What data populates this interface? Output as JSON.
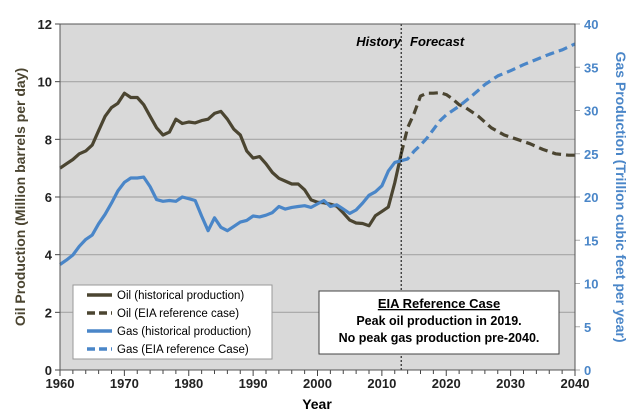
{
  "chart_data": {
    "type": "line",
    "xlabel": "Year",
    "ylabel": "Oil Production (Million barrels per day)",
    "y2label": "Gas Production (Trillion cubic feet per year)",
    "xlim": [
      1960,
      2040
    ],
    "ylim": [
      0,
      12
    ],
    "y2lim": [
      0,
      40
    ],
    "grid": true,
    "x_ticks": [
      "1960",
      "1970",
      "1980",
      "1990",
      "2000",
      "2010",
      "2020",
      "2030",
      "2040"
    ],
    "y_ticks": [
      "0",
      "2",
      "4",
      "6",
      "8",
      "10",
      "12"
    ],
    "y2_ticks": [
      "0",
      "5",
      "10",
      "15",
      "20",
      "25",
      "30",
      "35",
      "40"
    ],
    "divider_year": 2013,
    "annotations": {
      "history": "History",
      "forecast": "Forecast"
    },
    "colors": {
      "oil": "#4b4531",
      "gas": "#4a86c8",
      "plot_bg": "#d9d9d9"
    },
    "legend": {
      "placement": "bottom-left",
      "entries": [
        "Oil (historical production)",
        "Oil (EIA reference case)",
        "Gas (historical production)",
        "Gas (EIA reference Case)"
      ]
    },
    "callout": {
      "title": "EIA Reference Case",
      "line1": "Peak  oil production in 2019.",
      "line2": "No peak gas production pre-2040."
    },
    "series": [
      {
        "name": "Oil (historical production)",
        "axis": "left",
        "style": "solid",
        "color_key": "oil",
        "x": [
          1960,
          1961,
          1962,
          1963,
          1964,
          1965,
          1966,
          1967,
          1968,
          1969,
          1970,
          1971,
          1972,
          1973,
          1974,
          1975,
          1976,
          1977,
          1978,
          1979,
          1980,
          1981,
          1982,
          1983,
          1984,
          1985,
          1986,
          1987,
          1988,
          1989,
          1990,
          1991,
          1992,
          1993,
          1994,
          1995,
          1996,
          1997,
          1998,
          1999,
          2000,
          2001,
          2002,
          2003,
          2004,
          2005,
          2006,
          2007,
          2008,
          2009,
          2010,
          2011,
          2012,
          2013
        ],
        "y": [
          7.0,
          7.15,
          7.3,
          7.5,
          7.6,
          7.8,
          8.3,
          8.8,
          9.1,
          9.25,
          9.6,
          9.45,
          9.45,
          9.2,
          8.8,
          8.4,
          8.15,
          8.25,
          8.7,
          8.55,
          8.6,
          8.57,
          8.65,
          8.7,
          8.9,
          8.97,
          8.7,
          8.35,
          8.15,
          7.6,
          7.35,
          7.4,
          7.15,
          6.85,
          6.65,
          6.55,
          6.45,
          6.45,
          6.25,
          5.9,
          5.82,
          5.8,
          5.75,
          5.68,
          5.45,
          5.2,
          5.1,
          5.08,
          5.0,
          5.35,
          5.5,
          5.65,
          6.5,
          7.5
        ]
      },
      {
        "name": "Oil (EIA reference case)",
        "axis": "left",
        "style": "dashed",
        "color_key": "oil",
        "x": [
          2013,
          2014,
          2015,
          2016,
          2017,
          2018,
          2019,
          2020,
          2021,
          2022,
          2023,
          2025,
          2027,
          2029,
          2031,
          2033,
          2035,
          2037,
          2039,
          2040
        ],
        "y": [
          7.5,
          8.4,
          8.9,
          9.5,
          9.6,
          9.6,
          9.62,
          9.55,
          9.4,
          9.2,
          9.1,
          8.8,
          8.4,
          8.15,
          8.0,
          7.85,
          7.65,
          7.5,
          7.45,
          7.45
        ]
      },
      {
        "name": "Gas (historical production)",
        "axis": "right",
        "style": "solid",
        "color_key": "gas",
        "x": [
          1960,
          1961,
          1962,
          1963,
          1964,
          1965,
          1966,
          1967,
          1968,
          1969,
          1970,
          1971,
          1972,
          1973,
          1974,
          1975,
          1976,
          1977,
          1978,
          1979,
          1980,
          1981,
          1982,
          1983,
          1984,
          1985,
          1986,
          1987,
          1988,
          1989,
          1990,
          1991,
          1992,
          1993,
          1994,
          1995,
          1996,
          1997,
          1998,
          1999,
          2000,
          2001,
          2002,
          2003,
          2004,
          2005,
          2006,
          2007,
          2008,
          2009,
          2010,
          2011,
          2012,
          2013
        ],
        "y": [
          12.2,
          12.7,
          13.3,
          14.3,
          15.1,
          15.6,
          16.9,
          18.0,
          19.3,
          20.7,
          21.7,
          22.2,
          22.2,
          22.3,
          21.2,
          19.7,
          19.5,
          19.6,
          19.5,
          20.0,
          19.8,
          19.6,
          17.8,
          16.1,
          17.6,
          16.5,
          16.1,
          16.6,
          17.1,
          17.3,
          17.8,
          17.7,
          17.9,
          18.2,
          18.9,
          18.6,
          18.8,
          18.9,
          19.0,
          18.8,
          19.2,
          19.6,
          18.9,
          19.1,
          18.6,
          18.1,
          18.5,
          19.3,
          20.2,
          20.6,
          21.3,
          23.0,
          24.0,
          24.2
        ]
      },
      {
        "name": "Gas (EIA reference Case)",
        "axis": "right",
        "style": "dashed",
        "color_key": "gas",
        "x": [
          2013,
          2014,
          2015,
          2016,
          2017,
          2018,
          2019,
          2020,
          2022,
          2024,
          2026,
          2028,
          2030,
          2032,
          2034,
          2036,
          2038,
          2040
        ],
        "y": [
          24.2,
          24.4,
          25.3,
          26.0,
          26.8,
          27.8,
          28.8,
          29.5,
          30.5,
          31.7,
          33.0,
          34.0,
          34.6,
          35.3,
          35.9,
          36.5,
          37.0,
          37.7
        ]
      }
    ]
  }
}
